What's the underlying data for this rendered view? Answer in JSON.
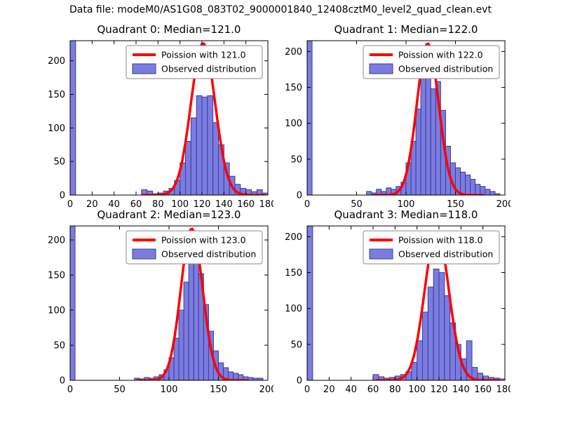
{
  "figure_title": "Data file: modeM0/AS1G08_083T02_9000001840_12408cztM0_level2_quad_clean.evt",
  "colors": {
    "curve": "#ff0000",
    "bar_fill": "#7b7dde",
    "bar_edge": "#3a3aa0",
    "axis": "#000000",
    "background": "#ffffff",
    "legend_border": "#8a8a8a"
  },
  "chart_data": [
    {
      "type": "bar",
      "title": "Quadrant 0: Median=121.0",
      "median": 121.0,
      "legend": [
        {
          "label": "Poission with 121.0",
          "type": "line"
        },
        {
          "label": "Observed distribution",
          "type": "patch"
        }
      ],
      "xlim": [
        0,
        180
      ],
      "ylim": [
        0,
        230
      ],
      "xticks": [
        0,
        20,
        40,
        60,
        80,
        100,
        120,
        140,
        160,
        180
      ],
      "yticks": [
        0,
        50,
        100,
        150,
        200
      ],
      "histogram": {
        "bin_start": 0,
        "bin_width": 5,
        "counts": [
          300,
          0,
          0,
          0,
          0,
          0,
          0,
          0,
          0,
          0,
          0,
          0,
          0,
          8,
          6,
          2,
          3,
          6,
          10,
          22,
          48,
          80,
          115,
          148,
          146,
          148,
          108,
          75,
          48,
          28,
          16,
          10,
          8,
          5,
          8,
          3
        ]
      },
      "curve": {
        "shape": "poisson",
        "center": 121,
        "sigma": 11,
        "amplitude": 226
      }
    },
    {
      "type": "bar",
      "title": "Quadrant 1: Median=122.0",
      "median": 122.0,
      "legend": [
        {
          "label": "Poission with 122.0",
          "type": "line"
        },
        {
          "label": "Observed distribution",
          "type": "patch"
        }
      ],
      "xlim": [
        0,
        200
      ],
      "ylim": [
        0,
        215
      ],
      "xticks": [
        0,
        50,
        100,
        150,
        200
      ],
      "yticks": [
        0,
        50,
        100,
        150,
        200
      ],
      "histogram": {
        "bin_start": 0,
        "bin_width": 5,
        "counts": [
          300,
          0,
          0,
          0,
          0,
          0,
          0,
          0,
          0,
          0,
          0,
          0,
          5,
          3,
          8,
          5,
          10,
          8,
          12,
          18,
          45,
          75,
          120,
          163,
          185,
          148,
          158,
          118,
          68,
          45,
          38,
          32,
          28,
          22,
          15,
          12,
          8,
          5,
          2,
          0
        ]
      },
      "curve": {
        "shape": "poisson",
        "center": 122,
        "sigma": 11,
        "amplitude": 211
      }
    },
    {
      "type": "bar",
      "title": "Quadrant 2: Median=123.0",
      "median": 123.0,
      "legend": [
        {
          "label": "Poission with 123.0",
          "type": "line"
        },
        {
          "label": "Observed distribution",
          "type": "patch"
        }
      ],
      "xlim": [
        0,
        200
      ],
      "ylim": [
        0,
        220
      ],
      "xticks": [
        0,
        50,
        100,
        150,
        200
      ],
      "yticks": [
        0,
        50,
        100,
        150,
        200
      ],
      "histogram": {
        "bin_start": 0,
        "bin_width": 5,
        "counts": [
          300,
          0,
          0,
          0,
          0,
          0,
          0,
          0,
          0,
          0,
          0,
          0,
          0,
          3,
          2,
          4,
          3,
          5,
          8,
          15,
          32,
          60,
          100,
          140,
          178,
          200,
          152,
          108,
          70,
          42,
          25,
          18,
          12,
          10,
          8,
          5,
          4,
          3,
          3,
          0
        ]
      },
      "curve": {
        "shape": "poisson",
        "center": 123,
        "sigma": 11,
        "amplitude": 216
      }
    },
    {
      "type": "bar",
      "title": "Quadrant 3: Median=118.0",
      "median": 118.0,
      "legend": [
        {
          "label": "Poission with 118.0",
          "type": "line"
        },
        {
          "label": "Observed distribution",
          "type": "patch"
        }
      ],
      "xlim": [
        0,
        180
      ],
      "ylim": [
        0,
        215
      ],
      "xticks": [
        0,
        20,
        40,
        60,
        80,
        100,
        120,
        140,
        160,
        180
      ],
      "yticks": [
        0,
        50,
        100,
        150,
        200
      ],
      "histogram": {
        "bin_start": 0,
        "bin_width": 5,
        "counts": [
          300,
          0,
          0,
          0,
          0,
          0,
          0,
          0,
          0,
          0,
          0,
          0,
          8,
          5,
          3,
          4,
          6,
          8,
          12,
          25,
          55,
          95,
          130,
          155,
          150,
          118,
          80,
          50,
          30,
          55,
          18,
          10,
          6,
          4,
          3,
          2
        ]
      },
      "curve": {
        "shape": "poisson",
        "center": 118,
        "sigma": 11,
        "amplitude": 207
      }
    }
  ]
}
